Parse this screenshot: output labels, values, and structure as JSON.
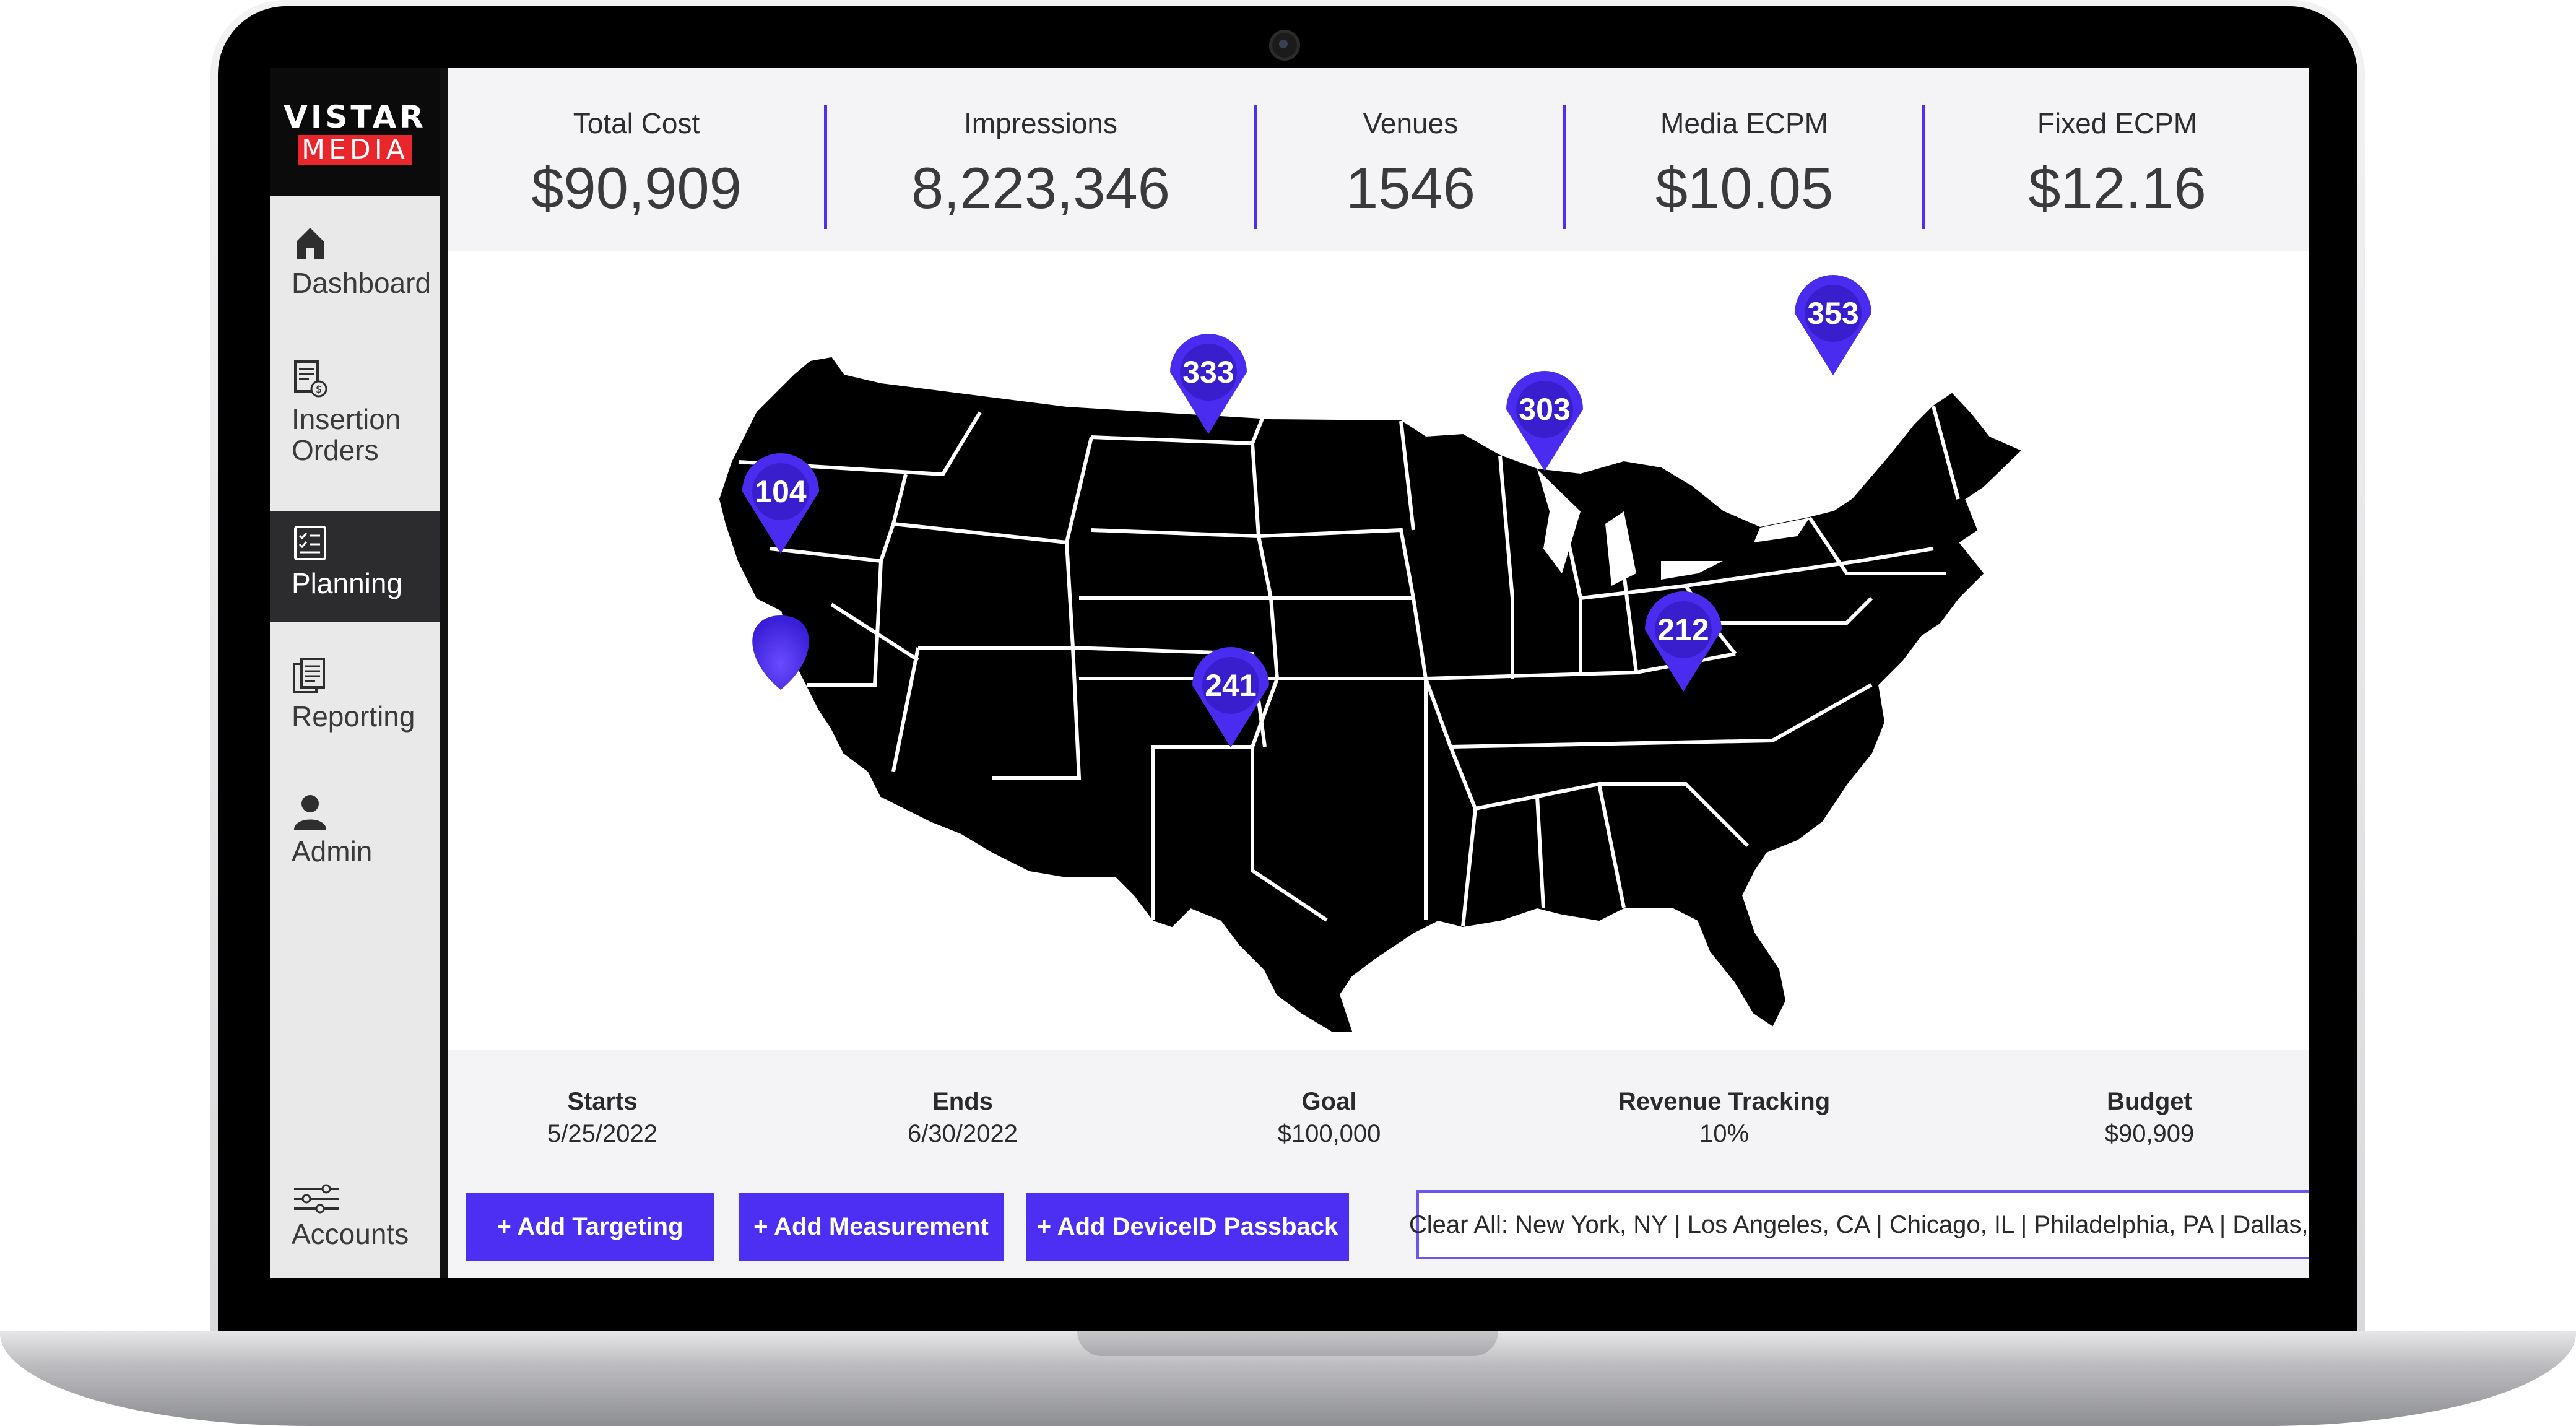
{
  "app": {
    "brand_top": "VISTAR",
    "brand_bottom": "MEDIA",
    "accent": "#4d2ff3",
    "brand_red": "#e8262c"
  },
  "sidebar": {
    "items": [
      {
        "label": "Dashboard",
        "icon": "home-icon",
        "active": false
      },
      {
        "label": "Insertion Orders",
        "icon": "document-dollar-icon",
        "active": false
      },
      {
        "label": "Planning",
        "icon": "checklist-icon",
        "active": true
      },
      {
        "label": "Reporting",
        "icon": "report-pages-icon",
        "active": false
      },
      {
        "label": "Admin",
        "icon": "user-icon",
        "active": false
      },
      {
        "label": "Accounts",
        "icon": "sliders-icon",
        "active": false
      }
    ]
  },
  "metrics": [
    {
      "label": "Total Cost",
      "value": "$90,909"
    },
    {
      "label": "Impressions",
      "value": "8,223,346"
    },
    {
      "label": "Venues",
      "value": "1546"
    },
    {
      "label": "Media ECPM",
      "value": "$10.05"
    },
    {
      "label": "Fixed ECPM",
      "value": "$12.16"
    }
  ],
  "map": {
    "pins": [
      {
        "label": "104",
        "place": "California"
      },
      {
        "label": "333",
        "place": "South Dakota"
      },
      {
        "label": "303",
        "place": "Illinois"
      },
      {
        "label": "353",
        "place": "New York"
      },
      {
        "label": "241",
        "place": "Texas"
      },
      {
        "label": "212",
        "place": "Georgia"
      }
    ]
  },
  "campaign": {
    "starts_label": "Starts",
    "starts": "5/25/2022",
    "ends_label": "Ends",
    "ends": "6/30/2022",
    "goal_label": "Goal",
    "goal": "$100,000",
    "revenue_label": "Revenue Tracking",
    "revenue": "10%",
    "budget_label": "Budget",
    "budget": "$90,909"
  },
  "actions": {
    "add_targeting": "+ Add Targeting",
    "add_measurement": "+ Add Measurement",
    "add_deviceid": "+ Add DeviceID Passback",
    "clear_all": "Clear All: New York, NY | Los Angeles, CA | Chicago, IL | Philadelphia, PA | Dallas, TX"
  }
}
